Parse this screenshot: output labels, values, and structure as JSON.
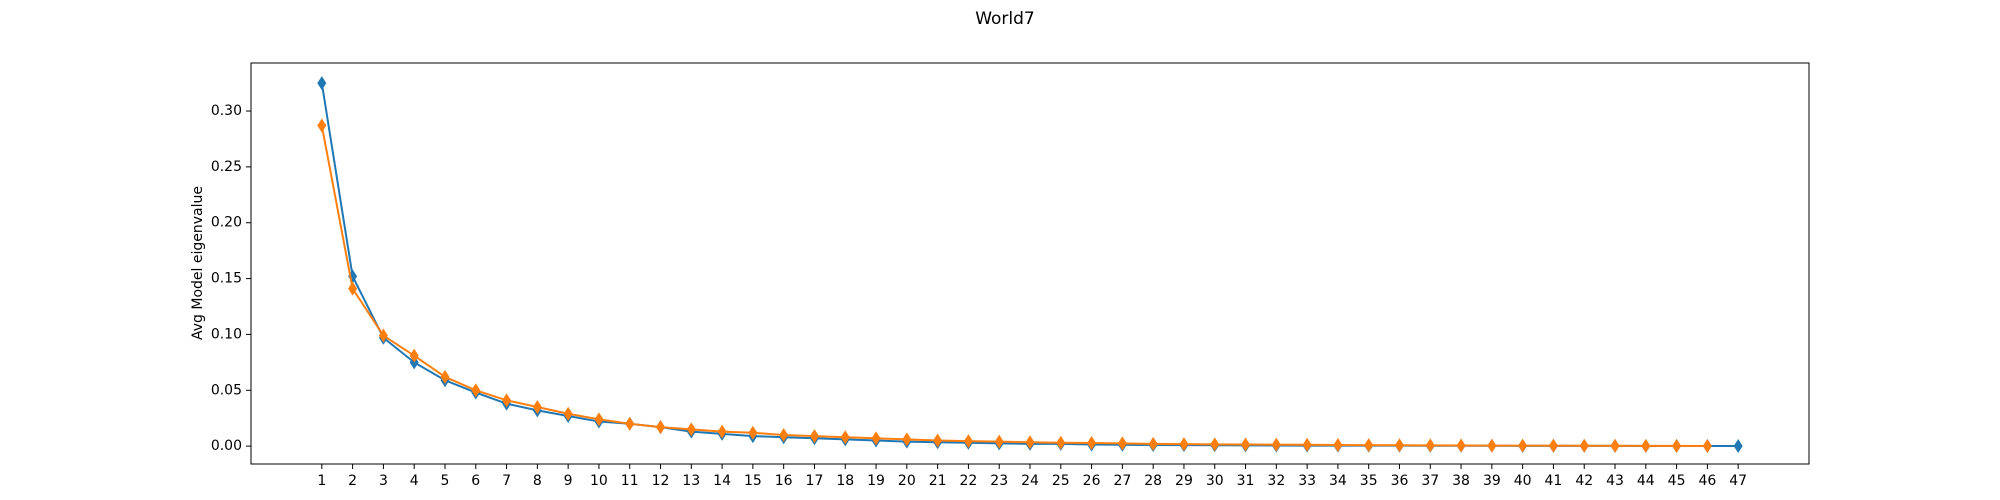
{
  "chart_data": {
    "type": "line",
    "title": "World7",
    "ylabel": "Avg Model eigenvalue",
    "x": [
      1,
      2,
      3,
      4,
      5,
      6,
      7,
      8,
      9,
      10,
      11,
      12,
      13,
      14,
      15,
      16,
      17,
      18,
      19,
      20,
      21,
      22,
      23,
      24,
      25,
      26,
      27,
      28,
      29,
      30,
      31,
      32,
      33,
      34,
      35,
      36,
      37,
      38,
      39,
      40,
      41,
      42,
      43,
      44,
      45,
      46,
      47
    ],
    "xticks": [
      1,
      2,
      3,
      4,
      5,
      6,
      7,
      8,
      9,
      10,
      11,
      12,
      13,
      14,
      15,
      16,
      17,
      18,
      19,
      20,
      21,
      22,
      23,
      24,
      25,
      26,
      27,
      28,
      29,
      30,
      31,
      32,
      33,
      34,
      35,
      36,
      37,
      38,
      39,
      40,
      41,
      42,
      43,
      44,
      45,
      46,
      47
    ],
    "xlim": [
      -1.3,
      49.3
    ],
    "ylim": [
      -0.016,
      0.343
    ],
    "yticks": [
      {
        "value": 0,
        "label": "0.00"
      },
      {
        "value": 0.05,
        "label": "0.05"
      },
      {
        "value": 0.1,
        "label": "0.10"
      },
      {
        "value": 0.15,
        "label": "0.15"
      },
      {
        "value": 0.2,
        "label": "0.20"
      },
      {
        "value": 0.25,
        "label": "0.25"
      },
      {
        "value": 0.3,
        "label": "0.30"
      }
    ],
    "series": [
      {
        "color": "#1f77b4",
        "values": [
          0.325,
          0.152,
          0.097,
          0.075,
          0.059,
          0.048,
          0.038,
          0.032,
          0.027,
          0.022,
          0.02,
          0.017,
          0.013,
          0.011,
          0.009,
          0.008,
          0.007,
          0.006,
          0.005,
          0.004,
          0.0035,
          0.003,
          0.0025,
          0.002,
          0.002,
          0.0015,
          0.0012,
          0.001,
          0.0009,
          0.0008,
          0.0007,
          0.0006,
          0.0005,
          0.0005,
          0.0004,
          0.0004,
          0.0003,
          0.0003,
          0.0003,
          0.0002,
          0.0002,
          0.0002,
          0.0002,
          0.0001,
          0.0001,
          0.0001,
          0.0001
        ]
      },
      {
        "color": "#ff7f0e",
        "values": [
          0.287,
          0.141,
          0.099,
          0.081,
          0.062,
          0.05,
          0.041,
          0.035,
          0.029,
          0.024,
          0.02,
          0.017,
          0.015,
          0.013,
          0.012,
          0.01,
          0.009,
          0.008,
          0.007,
          0.006,
          0.005,
          0.0045,
          0.004,
          0.0035,
          0.003,
          0.0028,
          0.0025,
          0.002,
          0.0018,
          0.0016,
          0.0015,
          0.0013,
          0.0012,
          0.001,
          0.0009,
          0.0008,
          0.0007,
          0.0006,
          0.0005,
          0.0005,
          0.0004,
          0.0003,
          0.0003,
          0.0002,
          0.0002,
          0.0001,
          null
        ]
      }
    ]
  }
}
